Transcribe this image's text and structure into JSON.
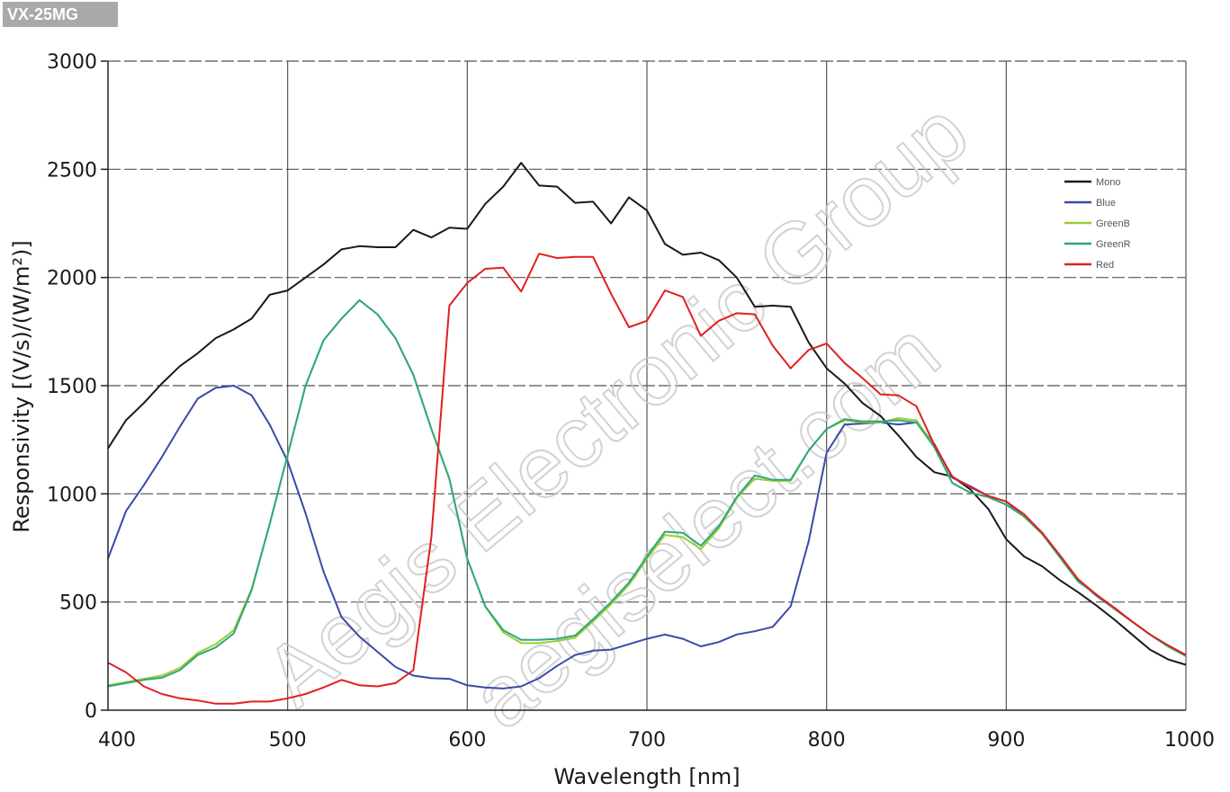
{
  "badge": "VX-25MG",
  "watermark": {
    "line1": "Aegis Electronic Group",
    "line2": "aegiselect.com"
  },
  "chart_data": {
    "type": "line",
    "title": "",
    "xlabel": "Wavelength [nm]",
    "ylabel": "Responsivity [(V/s)/(W/m²)]",
    "xlim": [
      400,
      1000
    ],
    "ylim": [
      0,
      3000
    ],
    "xticks": [
      400,
      500,
      600,
      700,
      800,
      900,
      1000
    ],
    "yticks": [
      0,
      500,
      1000,
      1500,
      2000,
      2500,
      3000
    ],
    "grid": true,
    "legend_position": "top-right",
    "x": [
      400,
      410,
      420,
      430,
      440,
      450,
      460,
      470,
      480,
      490,
      500,
      510,
      520,
      530,
      540,
      550,
      560,
      570,
      580,
      590,
      600,
      610,
      620,
      630,
      640,
      650,
      660,
      670,
      680,
      690,
      700,
      710,
      720,
      730,
      740,
      750,
      760,
      770,
      780,
      790,
      800,
      810,
      820,
      830,
      840,
      850,
      860,
      870,
      880,
      890,
      900,
      910,
      920,
      930,
      940,
      950,
      960,
      970,
      980,
      990,
      1000
    ],
    "series": [
      {
        "name": "Mono",
        "color": "#1a1a1a",
        "values": [
          1210,
          1340,
          1420,
          1510,
          1590,
          1650,
          1720,
          1760,
          1810,
          1920,
          1940,
          2000,
          2060,
          2130,
          2145,
          2140,
          2140,
          2220,
          2185,
          2230,
          2225,
          2340,
          2420,
          2530,
          2425,
          2420,
          2345,
          2350,
          2250,
          2370,
          2310,
          2155,
          2105,
          2115,
          2080,
          2000,
          1865,
          1870,
          1865,
          1700,
          1580,
          1510,
          1420,
          1360,
          1270,
          1170,
          1100,
          1080,
          1020,
          930,
          790,
          710,
          665,
          600,
          545,
          485,
          420,
          350,
          280,
          235,
          210
        ]
      },
      {
        "name": "Blue",
        "color": "#3a4aa8",
        "values": [
          700,
          920,
          1040,
          1170,
          1310,
          1440,
          1490,
          1500,
          1455,
          1320,
          1150,
          910,
          640,
          430,
          340,
          270,
          200,
          160,
          148,
          145,
          115,
          105,
          100,
          110,
          148,
          205,
          255,
          275,
          280,
          305,
          330,
          350,
          330,
          295,
          315,
          350,
          365,
          385,
          480,
          780,
          1190,
          1320,
          1325,
          1330,
          1320,
          1330,
          1230,
          1075,
          1035,
          990,
          965,
          895,
          820,
          710,
          600,
          530,
          470,
          410,
          350,
          300,
          255
        ]
      },
      {
        "name": "GreenB",
        "color": "#9acd32",
        "values": [
          115,
          130,
          145,
          160,
          195,
          265,
          305,
          370,
          560,
          860,
          1180,
          1500,
          1710,
          1810,
          1895,
          1830,
          1720,
          1550,
          1300,
          1070,
          700,
          480,
          360,
          310,
          310,
          320,
          335,
          410,
          490,
          580,
          700,
          810,
          800,
          745,
          840,
          980,
          1070,
          1060,
          1060,
          1200,
          1300,
          1340,
          1330,
          1330,
          1350,
          1340,
          1220,
          1050,
          1005,
          985,
          950,
          895,
          815,
          705,
          595,
          535,
          470,
          410,
          350,
          295,
          250
        ]
      },
      {
        "name": "GreenR",
        "color": "#2ea87a",
        "values": [
          110,
          125,
          140,
          150,
          185,
          255,
          290,
          355,
          555,
          860,
          1180,
          1500,
          1710,
          1810,
          1895,
          1830,
          1720,
          1550,
          1300,
          1070,
          700,
          480,
          370,
          325,
          325,
          330,
          345,
          420,
          500,
          590,
          710,
          825,
          820,
          760,
          850,
          985,
          1085,
          1065,
          1065,
          1200,
          1300,
          1345,
          1335,
          1335,
          1340,
          1330,
          1215,
          1050,
          1005,
          985,
          950,
          895,
          815,
          705,
          595,
          535,
          470,
          410,
          350,
          295,
          250
        ]
      },
      {
        "name": "Red",
        "color": "#e02020",
        "values": [
          220,
          175,
          110,
          75,
          55,
          45,
          30,
          30,
          40,
          40,
          55,
          75,
          105,
          140,
          115,
          110,
          125,
          185,
          800,
          1870,
          1975,
          2040,
          2045,
          1935,
          2110,
          2090,
          2095,
          2095,
          1925,
          1770,
          1800,
          1940,
          1910,
          1730,
          1800,
          1835,
          1830,
          1685,
          1580,
          1665,
          1695,
          1605,
          1535,
          1460,
          1455,
          1405,
          1225,
          1080,
          1030,
          990,
          965,
          905,
          820,
          715,
          605,
          535,
          475,
          410,
          350,
          300,
          255
        ]
      }
    ]
  }
}
